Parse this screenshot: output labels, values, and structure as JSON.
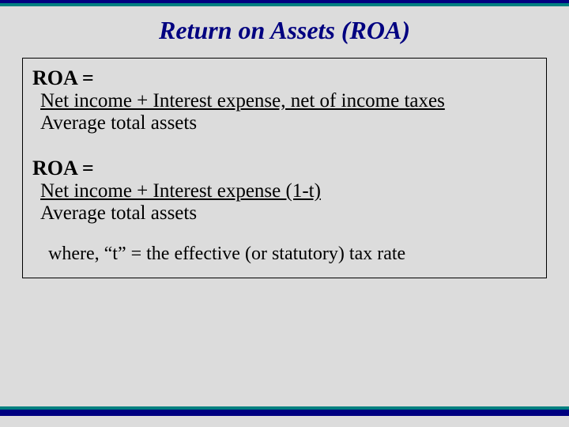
{
  "band": {
    "top_color_1": "#000080",
    "top_color_2": "#008080",
    "top_height_1": 4,
    "top_height_2": 4,
    "bottom_color_1": "#008080",
    "bottom_color_2": "#000080",
    "bottom_height_1": 4,
    "bottom_height_2": 8
  },
  "title": {
    "text": "Return on Assets (ROA)",
    "fontsize": 32,
    "color": "#000080"
  },
  "formula1": {
    "label": "ROA =",
    "numerator": "Net income + Interest expense, net of income taxes",
    "denominator": "Average total assets",
    "label_fontsize": 26,
    "line_fontsize": 25
  },
  "formula2": {
    "label": "ROA =",
    "numerator": "Net income + Interest expense (1-t)",
    "denominator": "Average total assets",
    "label_fontsize": 26,
    "line_fontsize": 25
  },
  "note": {
    "text": "where, “t” = the effective (or statutory) tax rate",
    "fontsize": 24
  },
  "background_color": "#dcdcdc"
}
